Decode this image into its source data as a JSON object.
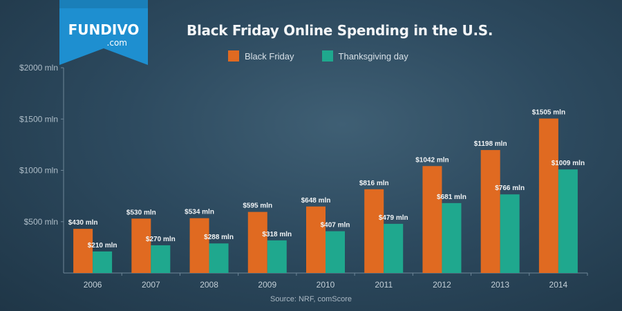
{
  "brand": {
    "name": "FUNDIVO",
    "suffix": ".com"
  },
  "colors": {
    "black_friday": "#e06a21",
    "thanksgiving": "#1fa88e"
  },
  "chart_data": {
    "type": "bar",
    "title": "Black Friday Online Spending in the U.S.",
    "source": "Source: NRF, comScore",
    "categories": [
      "2006",
      "2007",
      "2008",
      "2009",
      "2010",
      "2011",
      "2012",
      "2013",
      "2014"
    ],
    "series": [
      {
        "name": "Black Friday",
        "values": [
          430,
          530,
          534,
          595,
          648,
          816,
          1042,
          1198,
          1505
        ],
        "labels": [
          "$430 mln",
          "$530 mln",
          "$534 mln",
          "$595 mln",
          "$648 mln",
          "$816 mln",
          "$1042 mln",
          "$1198 mln",
          "$1505 mln"
        ]
      },
      {
        "name": "Thanksgiving day",
        "values": [
          210,
          270,
          288,
          318,
          407,
          479,
          681,
          766,
          1009
        ],
        "labels": [
          "$210 mln",
          "$270 mln",
          "$288 mln",
          "$318 mln",
          "$407 mln",
          "$479 mln",
          "$681 mln",
          "$766 mln",
          "$1009 mln"
        ]
      }
    ],
    "yticks": [
      {
        "value": 500,
        "label": "$500 mln"
      },
      {
        "value": 1000,
        "label": "$1000 mln"
      },
      {
        "value": 1500,
        "label": "$1500 mln"
      },
      {
        "value": 2000,
        "label": "$2000 mln"
      }
    ],
    "ylim": [
      0,
      2000
    ],
    "legend": "top-center",
    "grid": false
  }
}
